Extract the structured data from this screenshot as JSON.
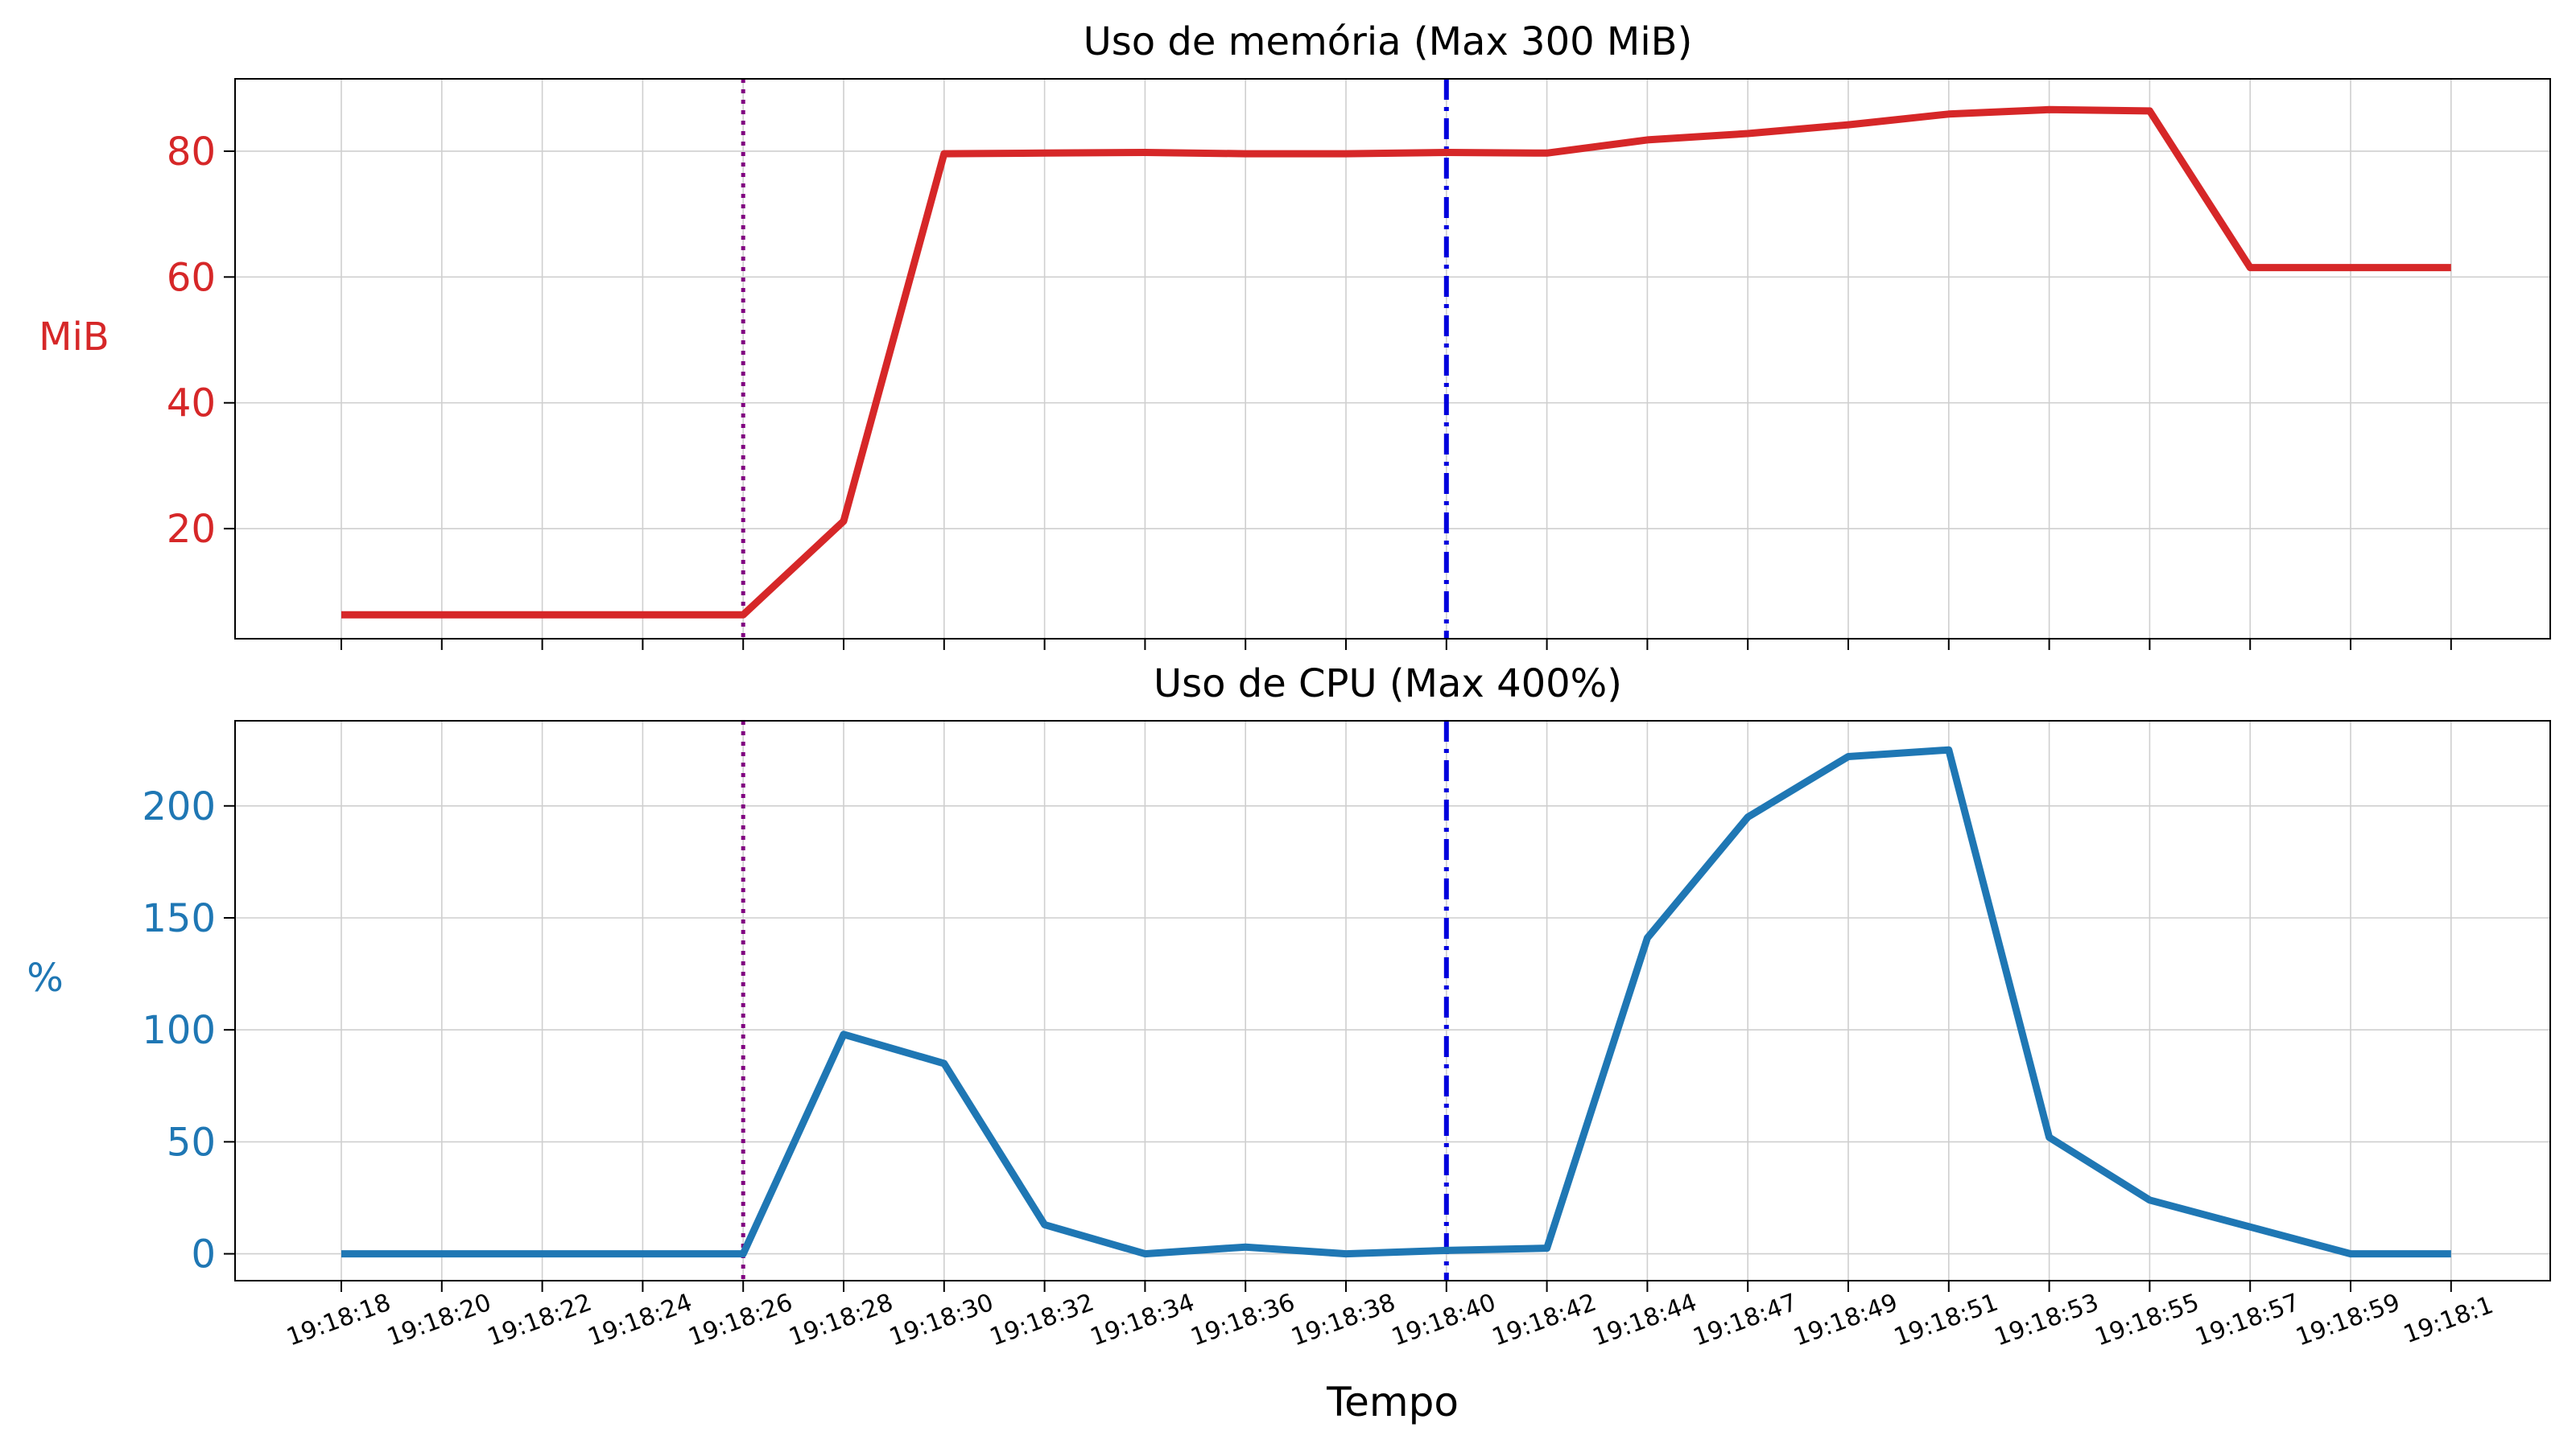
{
  "chart_data": [
    {
      "type": "line",
      "title": "Uso de memória (Max 300 MiB)",
      "ylabel": "MiB",
      "xlabel": "",
      "ylim": [
        2.5,
        91.5
      ],
      "yticks": [
        20,
        40,
        60,
        80
      ],
      "grid": true,
      "color": "#d62728",
      "categories": [
        "19:18:18",
        "19:18:20",
        "19:18:22",
        "19:18:24",
        "19:18:26",
        "19:18:28",
        "19:18:30",
        "19:18:32",
        "19:18:34",
        "19:18:36",
        "19:18:38",
        "19:18:40",
        "19:18:42",
        "19:18:44",
        "19:18:47",
        "19:18:49",
        "19:18:51",
        "19:18:53",
        "19:18:55",
        "19:18:57",
        "19:18:59",
        "19:18:1"
      ],
      "series": [
        {
          "values": [
            6.3,
            6.3,
            6.3,
            6.3,
            6.3,
            21.2,
            79.6,
            79.7,
            79.8,
            79.6,
            79.6,
            79.8,
            79.7,
            81.8,
            82.8,
            84.2,
            85.9,
            86.6,
            86.4,
            61.5,
            61.5,
            61.5
          ]
        }
      ],
      "vlines": [
        {
          "at": "19:18:26",
          "style": "dotted",
          "color": "#800080"
        },
        {
          "at": "19:18:40",
          "style": "dashdot",
          "color": "#0000dd"
        }
      ]
    },
    {
      "type": "line",
      "title": "Uso de CPU (Max 400%)",
      "ylabel": "%",
      "xlabel": "Tempo",
      "ylim": [
        -12,
        238
      ],
      "yticks": [
        0,
        50,
        100,
        150,
        200
      ],
      "grid": true,
      "color": "#1f77b4",
      "categories": [
        "19:18:18",
        "19:18:20",
        "19:18:22",
        "19:18:24",
        "19:18:26",
        "19:18:28",
        "19:18:30",
        "19:18:32",
        "19:18:34",
        "19:18:36",
        "19:18:38",
        "19:18:40",
        "19:18:42",
        "19:18:44",
        "19:18:47",
        "19:18:49",
        "19:18:51",
        "19:18:53",
        "19:18:55",
        "19:18:57",
        "19:18:59",
        "19:18:1"
      ],
      "series": [
        {
          "values": [
            0,
            0,
            0,
            0,
            0,
            98,
            85,
            13,
            0,
            3,
            0,
            1.5,
            2.5,
            141,
            195,
            222,
            225,
            52,
            24,
            12,
            0,
            0
          ]
        }
      ],
      "vlines": [
        {
          "at": "19:18:26",
          "style": "dotted",
          "color": "#800080"
        },
        {
          "at": "19:18:40",
          "style": "dashdot",
          "color": "#0000dd"
        }
      ]
    }
  ]
}
